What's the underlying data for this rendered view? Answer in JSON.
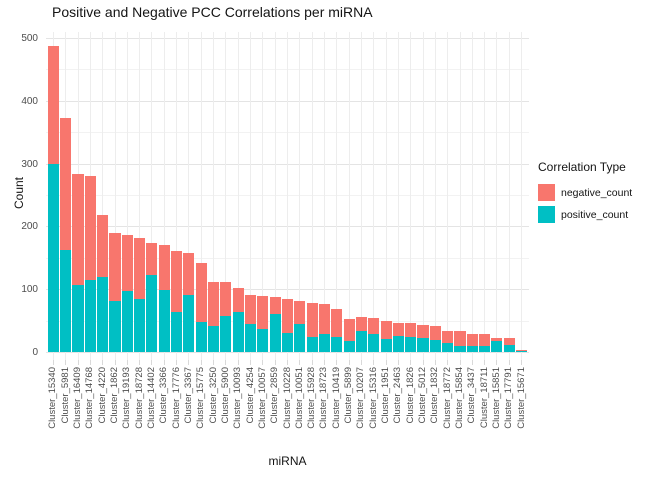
{
  "title": "Positive and Negative PCC Correlations per miRNA",
  "chart_data": {
    "type": "bar",
    "stacked": true,
    "title": "Positive and Negative PCC Correlations per miRNA",
    "xlabel": "miRNA",
    "ylabel": "Count",
    "ylim": [
      0,
      500
    ],
    "yticks": [
      0,
      100,
      200,
      300,
      400,
      500
    ],
    "grid": true,
    "legend_title": "Correlation Type",
    "legend_position": "right",
    "categories": [
      "Cluster_15340",
      "Cluster_5981",
      "Cluster_16409",
      "Cluster_14768",
      "Cluster_4220",
      "Cluster_1862",
      "Cluster_19193",
      "Cluster_18728",
      "Cluster_14402",
      "Cluster_3366",
      "Cluster_17776",
      "Cluster_3367",
      "Cluster_15775",
      "Cluster_3250",
      "Cluster_5900",
      "Cluster_10093",
      "Cluster_4254",
      "Cluster_10057",
      "Cluster_2859",
      "Cluster_10228",
      "Cluster_10051",
      "Cluster_15928",
      "Cluster_18723",
      "Cluster_10419",
      "Cluster_5899",
      "Cluster_10207",
      "Cluster_15316",
      "Cluster_1951",
      "Cluster_2463",
      "Cluster_1826",
      "Cluster_5012",
      "Cluster_1832",
      "Cluster_18772",
      "Cluster_15854",
      "Cluster_3437",
      "Cluster_18711",
      "Cluster_15851",
      "Cluster_17791",
      "Cluster_15671"
    ],
    "series": [
      {
        "name": "negative_count",
        "color": "#F8766D",
        "stack_order": "top",
        "values": [
          187,
          210,
          177,
          166,
          98,
          108,
          90,
          96,
          51,
          72,
          98,
          66,
          95,
          71,
          54,
          38,
          46,
          52,
          27,
          54,
          38,
          54,
          48,
          44,
          35,
          22,
          25,
          28,
          21,
          22,
          20,
          22,
          18,
          24,
          19,
          19,
          6,
          12,
          3
        ]
      },
      {
        "name": "positive_count",
        "color": "#00BFC4",
        "stack_order": "bottom",
        "values": [
          300,
          162,
          106,
          115,
          120,
          82,
          97,
          85,
          123,
          98,
          63,
          91,
          47,
          41,
          57,
          64,
          45,
          37,
          60,
          31,
          44,
          24,
          28,
          24,
          18,
          33,
          29,
          21,
          25,
          24,
          23,
          19,
          15,
          9,
          9,
          9,
          17,
          11,
          1
        ]
      }
    ]
  },
  "legend": {
    "title": "Correlation Type",
    "items": [
      {
        "label": "negative_count",
        "color": "#F8766D"
      },
      {
        "label": "positive_count",
        "color": "#00BFC4"
      }
    ]
  }
}
